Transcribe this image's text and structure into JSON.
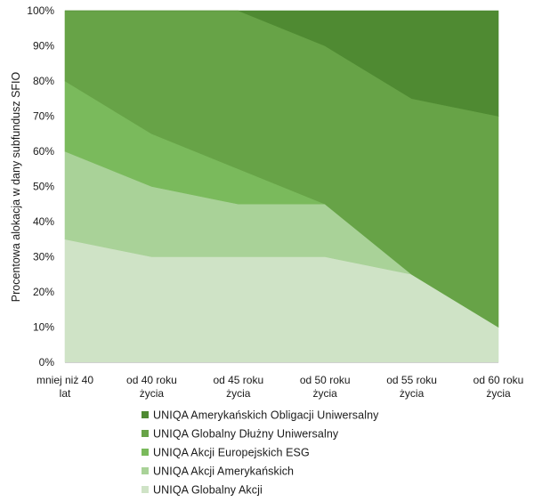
{
  "chart_data": {
    "type": "area",
    "stacked": true,
    "title": "",
    "xlabel": "",
    "ylabel": "Procentowa alokacja w dany subfundusz SFIO",
    "ylim": [
      0,
      100
    ],
    "y_ticks": [
      "0%",
      "10%",
      "20%",
      "30%",
      "40%",
      "50%",
      "60%",
      "70%",
      "80%",
      "90%",
      "100%"
    ],
    "categories": [
      [
        "mniej niż 40",
        "lat"
      ],
      [
        "od 40 roku",
        "życia"
      ],
      [
        "od 45 roku",
        "życia"
      ],
      [
        "od 50 roku",
        "życia"
      ],
      [
        "od 55 roku",
        "życia"
      ],
      [
        "od 60 roku",
        "życia"
      ]
    ],
    "series": [
      {
        "name": "UNIQA Globalny Akcji",
        "values": [
          35,
          30,
          30,
          30,
          25,
          10
        ],
        "color": "#cfe3c6"
      },
      {
        "name": "UNIQA Akcji Amerykańskich",
        "values": [
          25,
          20,
          15,
          15,
          0,
          0
        ],
        "color": "#a9d298"
      },
      {
        "name": "UNIQA Akcji Europejskich ESG",
        "values": [
          20,
          15,
          10,
          0,
          0,
          0
        ],
        "color": "#7aba5c"
      },
      {
        "name": "UNIQA Globalny Dłużny Uniwersalny",
        "values": [
          20,
          35,
          45,
          45,
          50,
          60
        ],
        "color": "#67a347"
      },
      {
        "name": "UNIQA Amerykańskich Obligacji Uniwersalny",
        "values": [
          0,
          0,
          0,
          10,
          25,
          30
        ],
        "color": "#4f8a32"
      }
    ],
    "legend": {
      "position": "bottom",
      "order": [
        "UNIQA Amerykańskich Obligacji Uniwersalny",
        "UNIQA Globalny Dłużny Uniwersalny",
        "UNIQA Akcji Europejskich ESG",
        "UNIQA Akcji Amerykańskich",
        "UNIQA Globalny Akcji"
      ]
    },
    "grid": false
  }
}
